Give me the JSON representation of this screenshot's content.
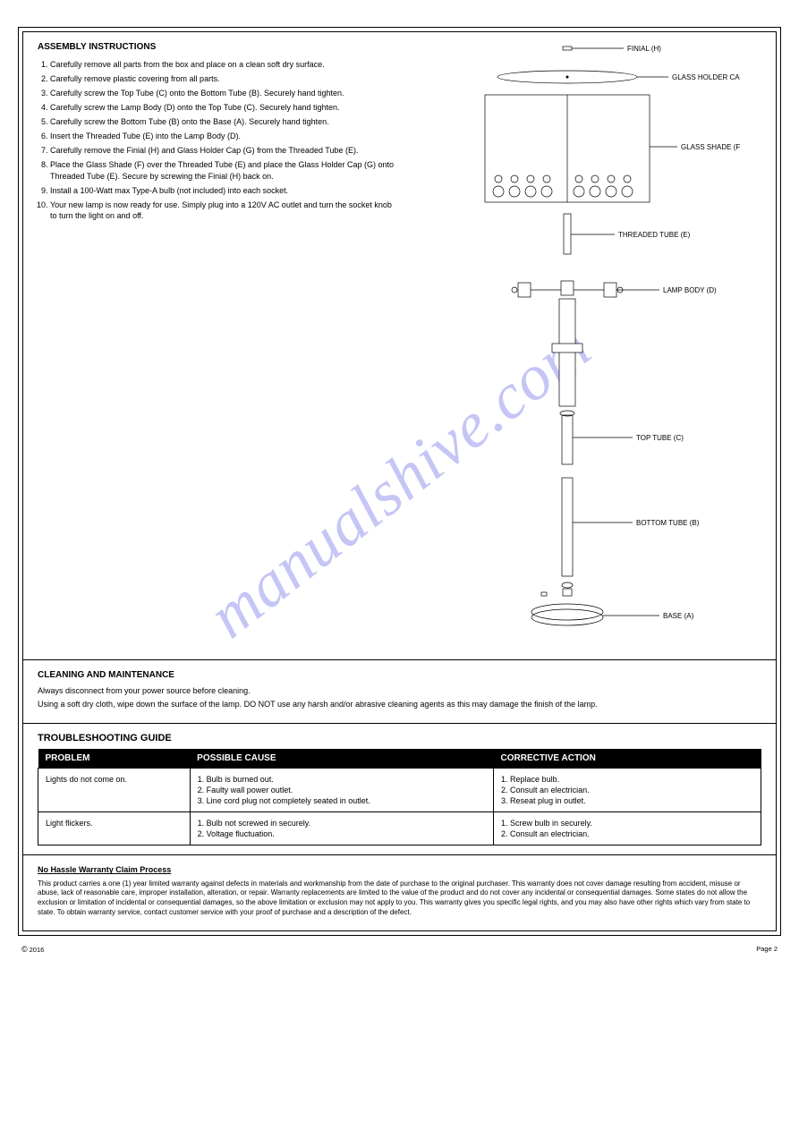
{
  "watermark_text": "manualshive.com",
  "watermark_color": "rgba(90,90,230,0.35)",
  "assembly": {
    "heading": "ASSEMBLY INSTRUCTIONS",
    "steps": [
      "Carefully remove all parts from the box and place on a clean soft dry surface.",
      "Carefully remove plastic covering from all parts.",
      "Carefully screw the Top Tube (C) onto the Bottom Tube (B). Securely hand tighten.",
      "Carefully screw the Lamp Body (D) onto the Top Tube (C). Securely hand tighten.",
      "Carefully screw the Bottom Tube (B) onto the Base (A). Securely hand tighten.",
      "Insert the Threaded Tube (E) into the Lamp Body (D).",
      "Carefully remove the Finial (H) and Glass Holder Cap (G) from the Threaded Tube (E).",
      "Place the Glass Shade (F) over the Threaded Tube (E) and place the Glass Holder Cap (G) onto Threaded Tube (E). Secure by screwing the Finial (H) back on.",
      "Install a 100-Watt max Type-A bulb (not included) into each socket.",
      "Your new lamp is now ready for use. Simply plug into a 120V AC outlet and turn the socket knob to turn the light on and off."
    ]
  },
  "diagram": {
    "labels": {
      "H": "FINIAL (H)",
      "G": "GLASS HOLDER CAP (G)",
      "F": "GLASS SHADE (F)",
      "E": "THREADED TUBE (E)",
      "D": "LAMP BODY (D)",
      "C": "TOP TUBE (C)",
      "B": "BOTTOM TUBE (B)",
      "A": "BASE (A)"
    },
    "shade_color": "#f5f5f5",
    "line_color": "#000000"
  },
  "cleaning": {
    "heading": "CLEANING AND MAINTENANCE",
    "lines": [
      "Always disconnect from your power source before cleaning.",
      "Using a soft dry cloth, wipe down the surface of the lamp. DO NOT use any harsh and/or abrasive cleaning agents as this may damage the finish of the lamp."
    ]
  },
  "troubleshooting": {
    "heading": "TROUBLESHOOTING GUIDE",
    "columns": [
      "PROBLEM",
      "POSSIBLE CAUSE",
      "CORRECTIVE ACTION"
    ],
    "rows": [
      {
        "problem": "Lights do not come on.",
        "cause": "1. Bulb is burned out.\n2. Faulty wall power outlet.\n3. Line cord plug not completely seated in outlet.",
        "action": "1. Replace bulb.\n2. Consult an electrician.\n3. Reseat plug in outlet."
      },
      {
        "problem": "Light flickers.",
        "cause": "1. Bulb not screwed in securely.\n2. Voltage fluctuation.",
        "action": "1. Screw bulb in securely.\n2. Consult an electrician."
      }
    ]
  },
  "warranty": {
    "title": "No Hassle Warranty Claim Process",
    "body": "This product carries a one (1) year limited warranty against defects in materials and workmanship from the date of purchase to the original purchaser. This warranty does not cover damage resulting from accident, misuse or abuse, lack of reasonable care, improper installation, alteration, or repair. Warranty replacements are limited to the value of the product and do not cover any incidental or consequential damages. Some states do not allow the exclusion or limitation of incidental or consequential damages, so the above limitation or exclusion may not apply to you. This warranty gives you specific legal rights, and you may also have other rights which vary from state to state. To obtain warranty service, contact customer service with your proof of purchase and a description of the defect."
  },
  "footer": {
    "copyright": "2016",
    "page": "Page 2"
  }
}
